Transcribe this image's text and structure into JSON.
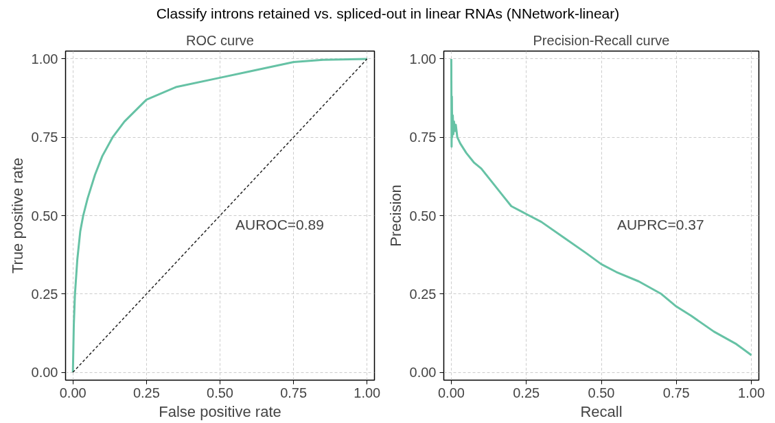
{
  "chart_data": [
    {
      "type": "line",
      "subtitle": "Classify introns retained vs. spliced-out in linear RNAs (NNetwork-linear)",
      "title": "ROC curve",
      "xlabel": "False positive rate",
      "ylabel": "True positive rate",
      "annotations": [
        "AUROC=0.89"
      ],
      "grid": true,
      "marker": "none",
      "xlim": [
        -0.025,
        1.025
      ],
      "ylim": [
        -0.025,
        1.025
      ],
      "xticks": [
        {
          "value": 0,
          "label": "0.00"
        },
        {
          "value": 0.25,
          "label": "0.25"
        },
        {
          "value": 0.5,
          "label": "0.50"
        },
        {
          "value": 0.75,
          "label": "0.75"
        },
        {
          "value": 1,
          "label": "1.00"
        }
      ],
      "yticks": [
        {
          "value": 0,
          "label": "0.00"
        },
        {
          "value": 0.25,
          "label": "0.25"
        },
        {
          "value": 0.5,
          "label": "0.50"
        },
        {
          "value": 0.75,
          "label": "0.75"
        },
        {
          "value": 1,
          "label": "1.00"
        }
      ],
      "series": [
        {
          "color": "#66c2a5",
          "line_style": "solid",
          "x": [
            0,
            0.003,
            0.007,
            0.015,
            0.025,
            0.035,
            0.05,
            0.075,
            0.1,
            0.135,
            0.175,
            0.25,
            0.35,
            0.5,
            0.6,
            0.75,
            0.85,
            1
          ],
          "values": [
            0,
            0.15,
            0.25,
            0.36,
            0.45,
            0.5,
            0.555,
            0.63,
            0.69,
            0.75,
            0.8,
            0.87,
            0.91,
            0.94,
            0.96,
            0.99,
            0.997,
            1
          ]
        },
        {
          "color": "#222222",
          "line_style": "dashed",
          "x": [
            0,
            1
          ],
          "values": [
            0,
            1
          ]
        }
      ]
    },
    {
      "type": "line",
      "title": "Precision-Recall curve",
      "xlabel": "Recall",
      "ylabel": "Precision",
      "annotations": [
        "AUPRC=0.37"
      ],
      "grid": true,
      "marker": "none",
      "xlim": [
        -0.025,
        1.025
      ],
      "ylim": [
        -0.025,
        1.025
      ],
      "xticks": [
        {
          "value": 0,
          "label": "0.00"
        },
        {
          "value": 0.25,
          "label": "0.25"
        },
        {
          "value": 0.5,
          "label": "0.50"
        },
        {
          "value": 0.75,
          "label": "0.75"
        },
        {
          "value": 1,
          "label": "1.00"
        }
      ],
      "yticks": [
        {
          "value": 0,
          "label": "0.00"
        },
        {
          "value": 0.25,
          "label": "0.25"
        },
        {
          "value": 0.5,
          "label": "0.50"
        },
        {
          "value": 0.75,
          "label": "0.75"
        },
        {
          "value": 1,
          "label": "1.00"
        }
      ],
      "series": [
        {
          "color": "#66c2a5",
          "line_style": "solid",
          "x": [
            0,
            0.001,
            0.002,
            0.003,
            0.005,
            0.007,
            0.009,
            0.012,
            0.015,
            0.02,
            0.03,
            0.05,
            0.075,
            0.1,
            0.125,
            0.15,
            0.175,
            0.2,
            0.25,
            0.3,
            0.375,
            0.45,
            0.5,
            0.55,
            0.625,
            0.7,
            0.75,
            0.8,
            0.875,
            0.95,
            1
          ],
          "values": [
            1.0,
            0.72,
            0.88,
            0.75,
            0.82,
            0.76,
            0.8,
            0.77,
            0.79,
            0.75,
            0.73,
            0.7,
            0.67,
            0.65,
            0.62,
            0.59,
            0.56,
            0.53,
            0.505,
            0.48,
            0.43,
            0.38,
            0.345,
            0.32,
            0.29,
            0.25,
            0.21,
            0.18,
            0.13,
            0.09,
            0.055
          ]
        }
      ]
    }
  ]
}
